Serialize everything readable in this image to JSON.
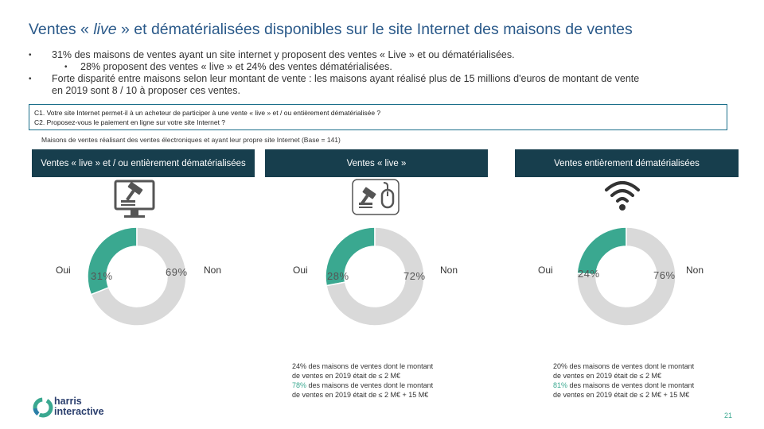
{
  "title": {
    "part1": "Ventes « ",
    "italic": "live",
    "part2": " » et dématérialisées disponibles sur le site Internet des maisons de ventes"
  },
  "bullets": [
    "31% des maisons de ventes ayant un site internet y proposent des ventes « Live » et ou dématérialisées.",
    "28% proposent des ventes « live » et 24% des ventes dématérialisées.",
    "Forte disparité entre maisons selon leur montant de vente : les maisons ayant réalisé plus de 15 millions d'euros de montant de vente",
    "en 2019 sont 8 / 10 à proposer ces ventes."
  ],
  "questions": [
    "C1. Votre site Internet permet-il à un acheteur de participer à une vente « live » et / ou entièrement dématérialisée ?",
    "C2. Proposez-vous le paiement en ligne sur votre site Internet ?"
  ],
  "base_note": "Maisons de ventes réalisant des ventes électroniques et ayant leur propre site Internet (Base = 141)",
  "colors": {
    "teal": "#3aa890",
    "grey": "#d9d9d9",
    "header_bg": "#173e4d",
    "title": "#2b5a8a"
  },
  "chart_data": [
    {
      "type": "pie",
      "title": "Ventes « live » et / ou entièrement dématérialisées",
      "icon": "computer-auction-icon",
      "categories": [
        "Oui",
        "Non"
      ],
      "values": [
        31,
        69
      ],
      "value_labels": [
        "31%",
        "69%"
      ]
    },
    {
      "type": "pie",
      "title": "Ventes « live »",
      "icon": "gavel-mouse-icon",
      "categories": [
        "Oui",
        "Non"
      ],
      "values": [
        28,
        72
      ],
      "value_labels": [
        "28%",
        "72%"
      ]
    },
    {
      "type": "pie",
      "title": "Ventes entièrement dématérialisées",
      "icon": "wifi-icon",
      "categories": [
        "Oui",
        "Non"
      ],
      "values": [
        24,
        76
      ],
      "value_labels": [
        "24%",
        "76%"
      ]
    }
  ],
  "notes": [
    {
      "line1": "24% des maisons de ventes dont le montant",
      "line2": "de ventes en 2019 était de ≤ 2 M€",
      "highlight": "78%",
      "line3": " des maisons de ventes dont le montant",
      "line4": "de ventes en 2019 était de ≤ 2 M€ + 15 M€"
    },
    {
      "line1": "20% des maisons de ventes dont le montant",
      "line2": "de ventes en 2019 était de ≤ 2 M€",
      "highlight": "81%",
      "line3": " des maisons de ventes dont le montant",
      "line4": "de ventes en 2019 était de ≤ 2 M€ + 15 M€"
    }
  ],
  "logo": {
    "line1": "harris",
    "line2": "interactive"
  },
  "page_number": "21"
}
